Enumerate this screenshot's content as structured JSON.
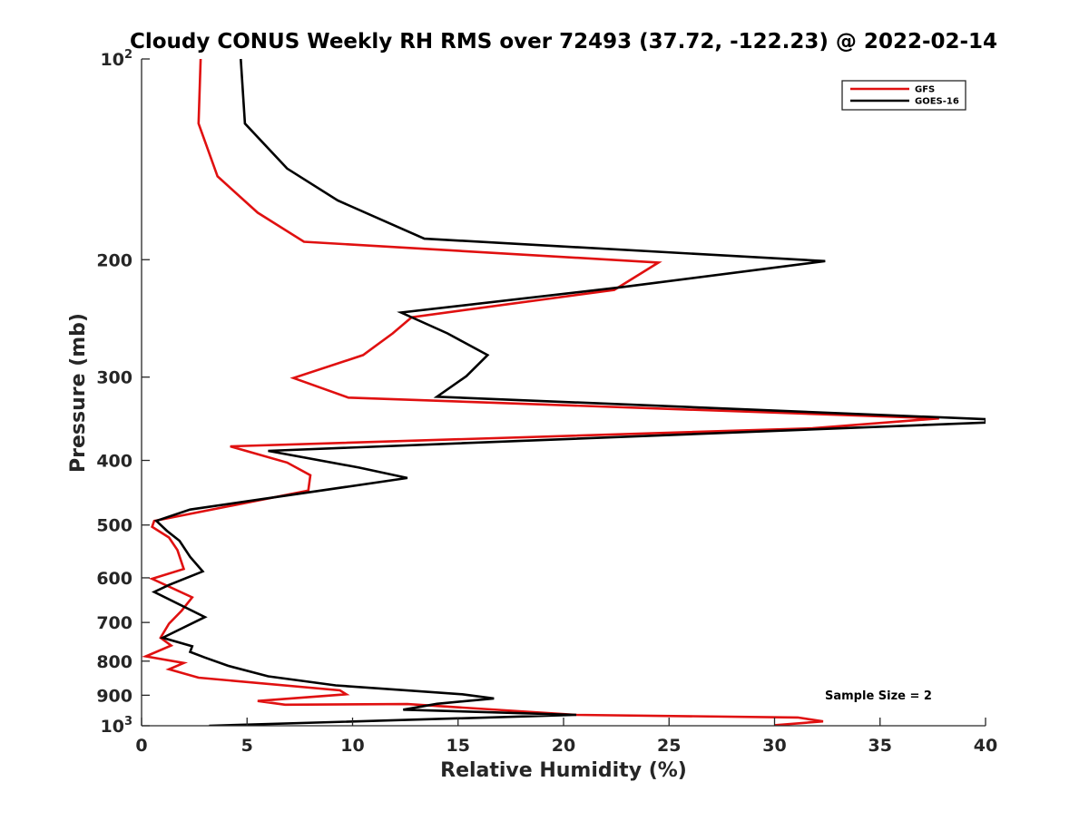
{
  "chart_data": {
    "type": "line",
    "title": "Cloudy CONUS Weekly RH RMS over 72493 (37.72, -122.23) @ 2022-02-14",
    "xlabel": "Relative Humidity (%)",
    "ylabel": "Pressure (mb)",
    "xlim": [
      0,
      40
    ],
    "ylim": [
      100,
      1000
    ],
    "y_scale": "log",
    "y_reversed": true,
    "grid": false,
    "legend_position": "top-right",
    "x_ticks": [
      "0",
      "5",
      "10",
      "15",
      "20",
      "25",
      "30",
      "35",
      "40"
    ],
    "y_ticks": [
      {
        "value": 100,
        "label": "10",
        "sup": "2"
      },
      {
        "value": 200,
        "label": "200",
        "sup": ""
      },
      {
        "value": 300,
        "label": "300",
        "sup": ""
      },
      {
        "value": 400,
        "label": "400",
        "sup": ""
      },
      {
        "value": 500,
        "label": "500",
        "sup": ""
      },
      {
        "value": 600,
        "label": "600",
        "sup": ""
      },
      {
        "value": 700,
        "label": "700",
        "sup": ""
      },
      {
        "value": 800,
        "label": "800",
        "sup": ""
      },
      {
        "value": 900,
        "label": "900",
        "sup": ""
      },
      {
        "value": 1000,
        "label": "10",
        "sup": "3"
      }
    ],
    "annotation": "Sample Size = 2",
    "series": [
      {
        "name": "GFS",
        "color": "#e01010",
        "points": [
          [
            2.8,
            100
          ],
          [
            2.7,
            125
          ],
          [
            3.6,
            150
          ],
          [
            5.5,
            170
          ],
          [
            7.7,
            188
          ],
          [
            24.5,
            202
          ],
          [
            22.4,
            222
          ],
          [
            12.8,
            244
          ],
          [
            11.9,
            258
          ],
          [
            10.5,
            278
          ],
          [
            7.2,
            301
          ],
          [
            9.8,
            322
          ],
          [
            37.8,
            346
          ],
          [
            31.8,
            358
          ],
          [
            4.2,
            381
          ],
          [
            6.9,
            403
          ],
          [
            8.0,
            421
          ],
          [
            7.9,
            444
          ],
          [
            0.6,
            493
          ],
          [
            0.5,
            503
          ],
          [
            1.3,
            522
          ],
          [
            1.7,
            545
          ],
          [
            2.0,
            582
          ],
          [
            0.5,
            602
          ],
          [
            2.4,
            642
          ],
          [
            1.9,
            672
          ],
          [
            1.3,
            703
          ],
          [
            0.9,
            738
          ],
          [
            1.4,
            758
          ],
          [
            0.2,
            787
          ],
          [
            2.0,
            805
          ],
          [
            1.3,
            823
          ],
          [
            2.7,
            847
          ],
          [
            9.4,
            885
          ],
          [
            9.7,
            897
          ],
          [
            5.5,
            918
          ],
          [
            6.8,
            930
          ],
          [
            12.6,
            928
          ],
          [
            20.6,
            963
          ],
          [
            31.1,
            972
          ],
          [
            32.3,
            985
          ],
          [
            30.0,
            998
          ]
        ]
      },
      {
        "name": "GOES-16",
        "color": "#000000",
        "points": [
          [
            4.7,
            100
          ],
          [
            4.9,
            125
          ],
          [
            6.9,
            146
          ],
          [
            9.3,
            163
          ],
          [
            13.4,
            186
          ],
          [
            32.4,
            201
          ],
          [
            22.7,
            220
          ],
          [
            12.3,
            240
          ],
          [
            14.5,
            258
          ],
          [
            16.4,
            278
          ],
          [
            15.4,
            299
          ],
          [
            14.0,
            321
          ],
          [
            40.0,
            347
          ],
          [
            40.0,
            351
          ],
          [
            6.0,
            387
          ],
          [
            10.3,
            410
          ],
          [
            12.6,
            425
          ],
          [
            2.3,
            474
          ],
          [
            0.7,
            493
          ],
          [
            1.2,
            510
          ],
          [
            1.8,
            528
          ],
          [
            2.3,
            558
          ],
          [
            2.9,
            587
          ],
          [
            1.3,
            615
          ],
          [
            0.6,
            630
          ],
          [
            3.0,
            687
          ],
          [
            1.0,
            738
          ],
          [
            2.4,
            760
          ],
          [
            2.3,
            775
          ],
          [
            3.0,
            790
          ],
          [
            4.1,
            813
          ],
          [
            6.0,
            843
          ],
          [
            9.2,
            870
          ],
          [
            15.2,
            897
          ],
          [
            16.7,
            910
          ],
          [
            14.0,
            927
          ],
          [
            12.4,
            946
          ],
          [
            20.6,
            963
          ],
          [
            3.2,
            1000
          ]
        ]
      }
    ]
  }
}
